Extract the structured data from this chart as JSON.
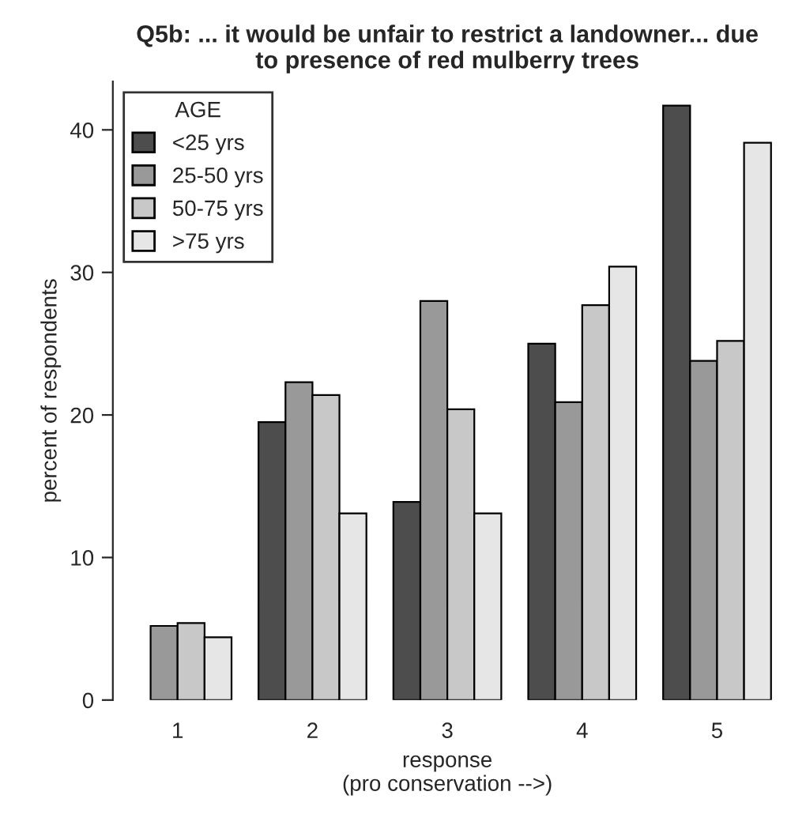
{
  "chart_data": {
    "type": "bar",
    "title": "Q5b: ... it would be unfair to restrict a landowner... due\nto presence of red mulberry trees",
    "xlabel": "response\n(pro conservation -->)",
    "ylabel": "percent of respondents",
    "legend_title": "AGE",
    "legend": "top left",
    "grid": false,
    "categories": [
      "1",
      "2",
      "3",
      "4",
      "5"
    ],
    "series": [
      {
        "name": "<25 yrs",
        "color": "#4d4d4d",
        "values": [
          0,
          19.5,
          13.9,
          25.0,
          41.7
        ]
      },
      {
        "name": "25-50 yrs",
        "color": "#999999",
        "values": [
          5.2,
          22.3,
          28.0,
          20.9,
          23.8
        ]
      },
      {
        "name": "50-75 yrs",
        "color": "#c8c8c8",
        "values": [
          5.4,
          21.4,
          20.4,
          27.7,
          25.2
        ]
      },
      {
        "name": ">75 yrs",
        "color": "#e6e6e6",
        "values": [
          4.4,
          13.1,
          13.1,
          30.4,
          39.1
        ]
      }
    ],
    "ylim": [
      0,
      43.4
    ],
    "yticks": [
      0,
      10,
      20,
      30,
      40
    ]
  }
}
